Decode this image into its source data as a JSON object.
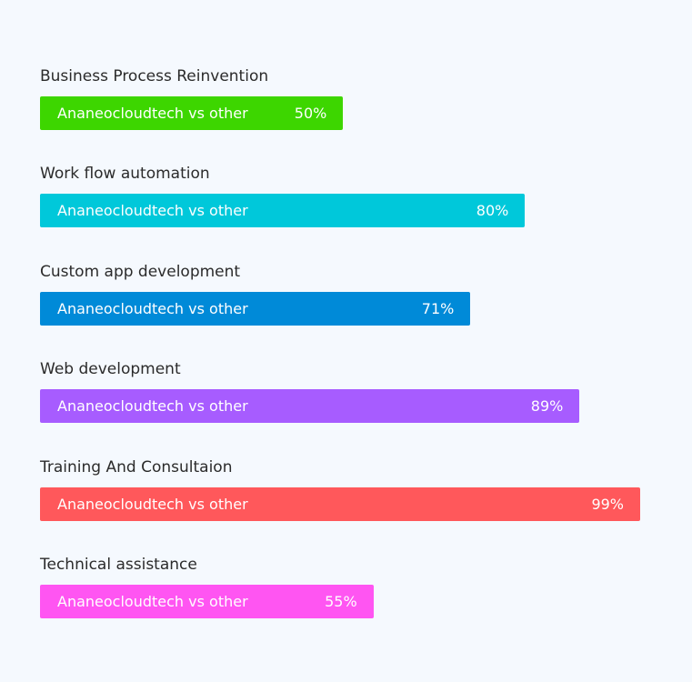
{
  "skills": [
    {
      "title": "Business Process Reinvention",
      "label": "Ananeocloudtech vs other",
      "percent_text": "50%",
      "percent": 50,
      "color": "#3dd600"
    },
    {
      "title": "Work flow automation",
      "label": "Ananeocloudtech vs other",
      "percent_text": "80%",
      "percent": 80,
      "color": "#00c8da"
    },
    {
      "title": "Custom app development",
      "label": "Ananeocloudtech vs other",
      "percent_text": "71%",
      "percent": 71,
      "color": "#008ad8"
    },
    {
      "title": "Web development",
      "label": "Ananeocloudtech vs other",
      "percent_text": "89%",
      "percent": 89,
      "color": "#a75cff"
    },
    {
      "title": "Training And Consultaion",
      "label": "Ananeocloudtech vs other",
      "percent_text": "99%",
      "percent": 99,
      "color": "#ff585b"
    },
    {
      "title": "Technical assistance",
      "label": "Ananeocloudtech vs other",
      "percent_text": "55%",
      "percent": 55,
      "color": "#ff55f2"
    }
  ]
}
